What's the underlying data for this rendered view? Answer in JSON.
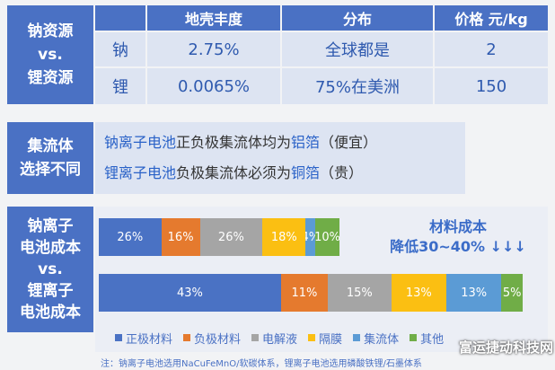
{
  "table": {
    "rows": [
      "钠资源",
      "vs.",
      "锂资源"
    ],
    "headers": [
      "地壳丰度",
      "分布",
      "价格 元/kg"
    ],
    "data": [
      {
        "element": "钠",
        "abundance": "2.75%",
        "distribution": "全球都是",
        "price": "2"
      },
      {
        "element": "锂",
        "abundance": "0.0065%",
        "distribution": "75%在美洲",
        "price": "150"
      }
    ]
  },
  "collector": {
    "label_lines": [
      "集流体",
      "选择不同"
    ],
    "line1": {
      "a": "钠离子电池",
      "b": "正负极集流体均为",
      "c": "铝箔",
      "d": "（便宜）"
    },
    "line2": {
      "a": "锂离子电池",
      "b": "负极集流体必须为",
      "c": "铜箔",
      "d": "（贵）"
    }
  },
  "cost": {
    "label_lines": [
      "钠离子",
      "电池成本",
      "vs.",
      "锂离子",
      "电池成本"
    ],
    "annotation_lines": [
      "材料成本",
      "降低30~40% ↓↓↓"
    ],
    "colors": {
      "cathode": "#4a72c4",
      "anode": "#e57a2e",
      "electrolyte": "#a5a5a5",
      "separator": "#fbbf12",
      "collector": "#5b9bd5",
      "other": "#70ad47"
    },
    "sodium": [
      {
        "key": "cathode",
        "label": "26%",
        "value": 26
      },
      {
        "key": "anode",
        "label": "16%",
        "value": 16
      },
      {
        "key": "electrolyte",
        "label": "26%",
        "value": 26
      },
      {
        "key": "separator",
        "label": "18%",
        "value": 18
      },
      {
        "key": "collector",
        "label": "4%",
        "value": 4
      },
      {
        "key": "other",
        "label": "10%",
        "value": 10
      }
    ],
    "lithium": [
      {
        "key": "cathode",
        "label": "43%",
        "value": 43
      },
      {
        "key": "anode",
        "label": "11%",
        "value": 11
      },
      {
        "key": "electrolyte",
        "label": "15%",
        "value": 15
      },
      {
        "key": "separator",
        "label": "13%",
        "value": 13
      },
      {
        "key": "collector",
        "label": "13%",
        "value": 13
      },
      {
        "key": "other",
        "label": "5%",
        "value": 5
      }
    ],
    "legend": [
      {
        "key": "cathode",
        "label": "正极材料"
      },
      {
        "key": "anode",
        "label": "负极材料"
      },
      {
        "key": "electrolyte",
        "label": "电解液"
      },
      {
        "key": "separator",
        "label": "隔膜"
      },
      {
        "key": "collector",
        "label": "集流体"
      },
      {
        "key": "other",
        "label": "其他"
      }
    ]
  },
  "footnote": "注：钠离子电池选用NaCuFeMnO/软碳体系，锂离子电池选用磷酸铁锂/石墨体系",
  "watermark": "富运捷动科技网"
}
